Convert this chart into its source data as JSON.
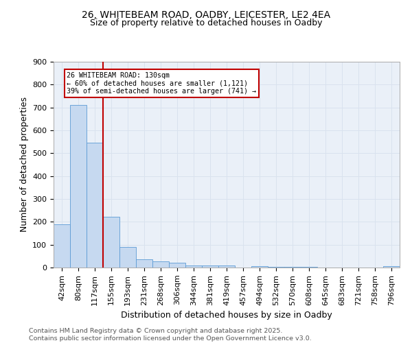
{
  "title_line1": "26, WHITEBEAM ROAD, OADBY, LEICESTER, LE2 4EA",
  "title_line2": "Size of property relative to detached houses in Oadby",
  "xlabel": "Distribution of detached houses by size in Oadby",
  "ylabel": "Number of detached properties",
  "categories": [
    "42sqm",
    "80sqm",
    "117sqm",
    "155sqm",
    "193sqm",
    "231sqm",
    "268sqm",
    "306sqm",
    "344sqm",
    "381sqm",
    "419sqm",
    "457sqm",
    "494sqm",
    "532sqm",
    "570sqm",
    "608sqm",
    "645sqm",
    "683sqm",
    "721sqm",
    "758sqm",
    "796sqm"
  ],
  "values": [
    190,
    710,
    545,
    222,
    90,
    35,
    28,
    20,
    10,
    10,
    8,
    0,
    5,
    3,
    2,
    3,
    0,
    0,
    0,
    0,
    7
  ],
  "bar_color": "#c6d9f0",
  "bar_edge_color": "#5b9bd5",
  "property_label": "26 WHITEBEAM ROAD: 130sqm",
  "pct_smaller": "60% of detached houses are smaller (1,121)",
  "pct_larger": "39% of semi-detached houses are larger (741)",
  "vline_x": 2.5,
  "vline_color": "#c00000",
  "annotation_box_color": "#c00000",
  "ann_text_line1": "26 WHITEBEAM ROAD: 130sqm",
  "ann_text_line2": "← 60% of detached houses are smaller (1,121)",
  "ann_text_line3": "39% of semi-detached houses are larger (741) →",
  "ylim": [
    0,
    900
  ],
  "yticks": [
    0,
    100,
    200,
    300,
    400,
    500,
    600,
    700,
    800,
    900
  ],
  "grid_color": "#d9e2ee",
  "bg_color": "#eaf0f8",
  "footer": "Contains HM Land Registry data © Crown copyright and database right 2025.\nContains public sector information licensed under the Open Government Licence v3.0.",
  "footer_fontsize": 6.8,
  "title_fontsize1": 10,
  "title_fontsize2": 9,
  "ann_fontsize": 7.2,
  "axis_label_fontsize": 9,
  "tick_fontsize": 8
}
